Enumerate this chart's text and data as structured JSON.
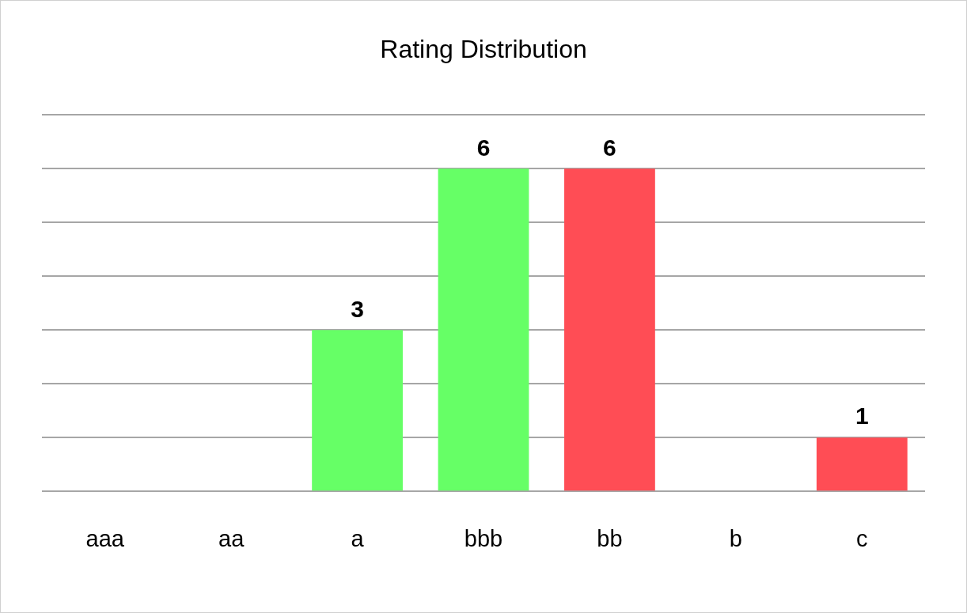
{
  "chart_data": {
    "type": "bar",
    "title": "Rating Distribution",
    "categories": [
      "aaa",
      "aa",
      "a",
      "bbb",
      "bb",
      "b",
      "c"
    ],
    "values": [
      0,
      0,
      3,
      6,
      6,
      0,
      1
    ],
    "colors": [
      "#66ff66",
      "#66ff66",
      "#66ff66",
      "#66ff66",
      "#ff4d55",
      "#ff4d55",
      "#ff4d55"
    ],
    "value_labels": [
      null,
      null,
      "3",
      "6",
      "6",
      null,
      "1"
    ],
    "ylim": [
      0,
      7
    ],
    "yticks": [
      {
        "value": 0,
        "label": null
      },
      {
        "value": 1,
        "label": null
      },
      {
        "value": 2,
        "label": null
      },
      {
        "value": 3,
        "label": null
      },
      {
        "value": 4,
        "label": null
      },
      {
        "value": 5,
        "label": null
      },
      {
        "value": 6,
        "label": null
      },
      {
        "value": 7,
        "label": null
      }
    ],
    "grid": "y",
    "tick_labels": "x",
    "legend": false
  }
}
